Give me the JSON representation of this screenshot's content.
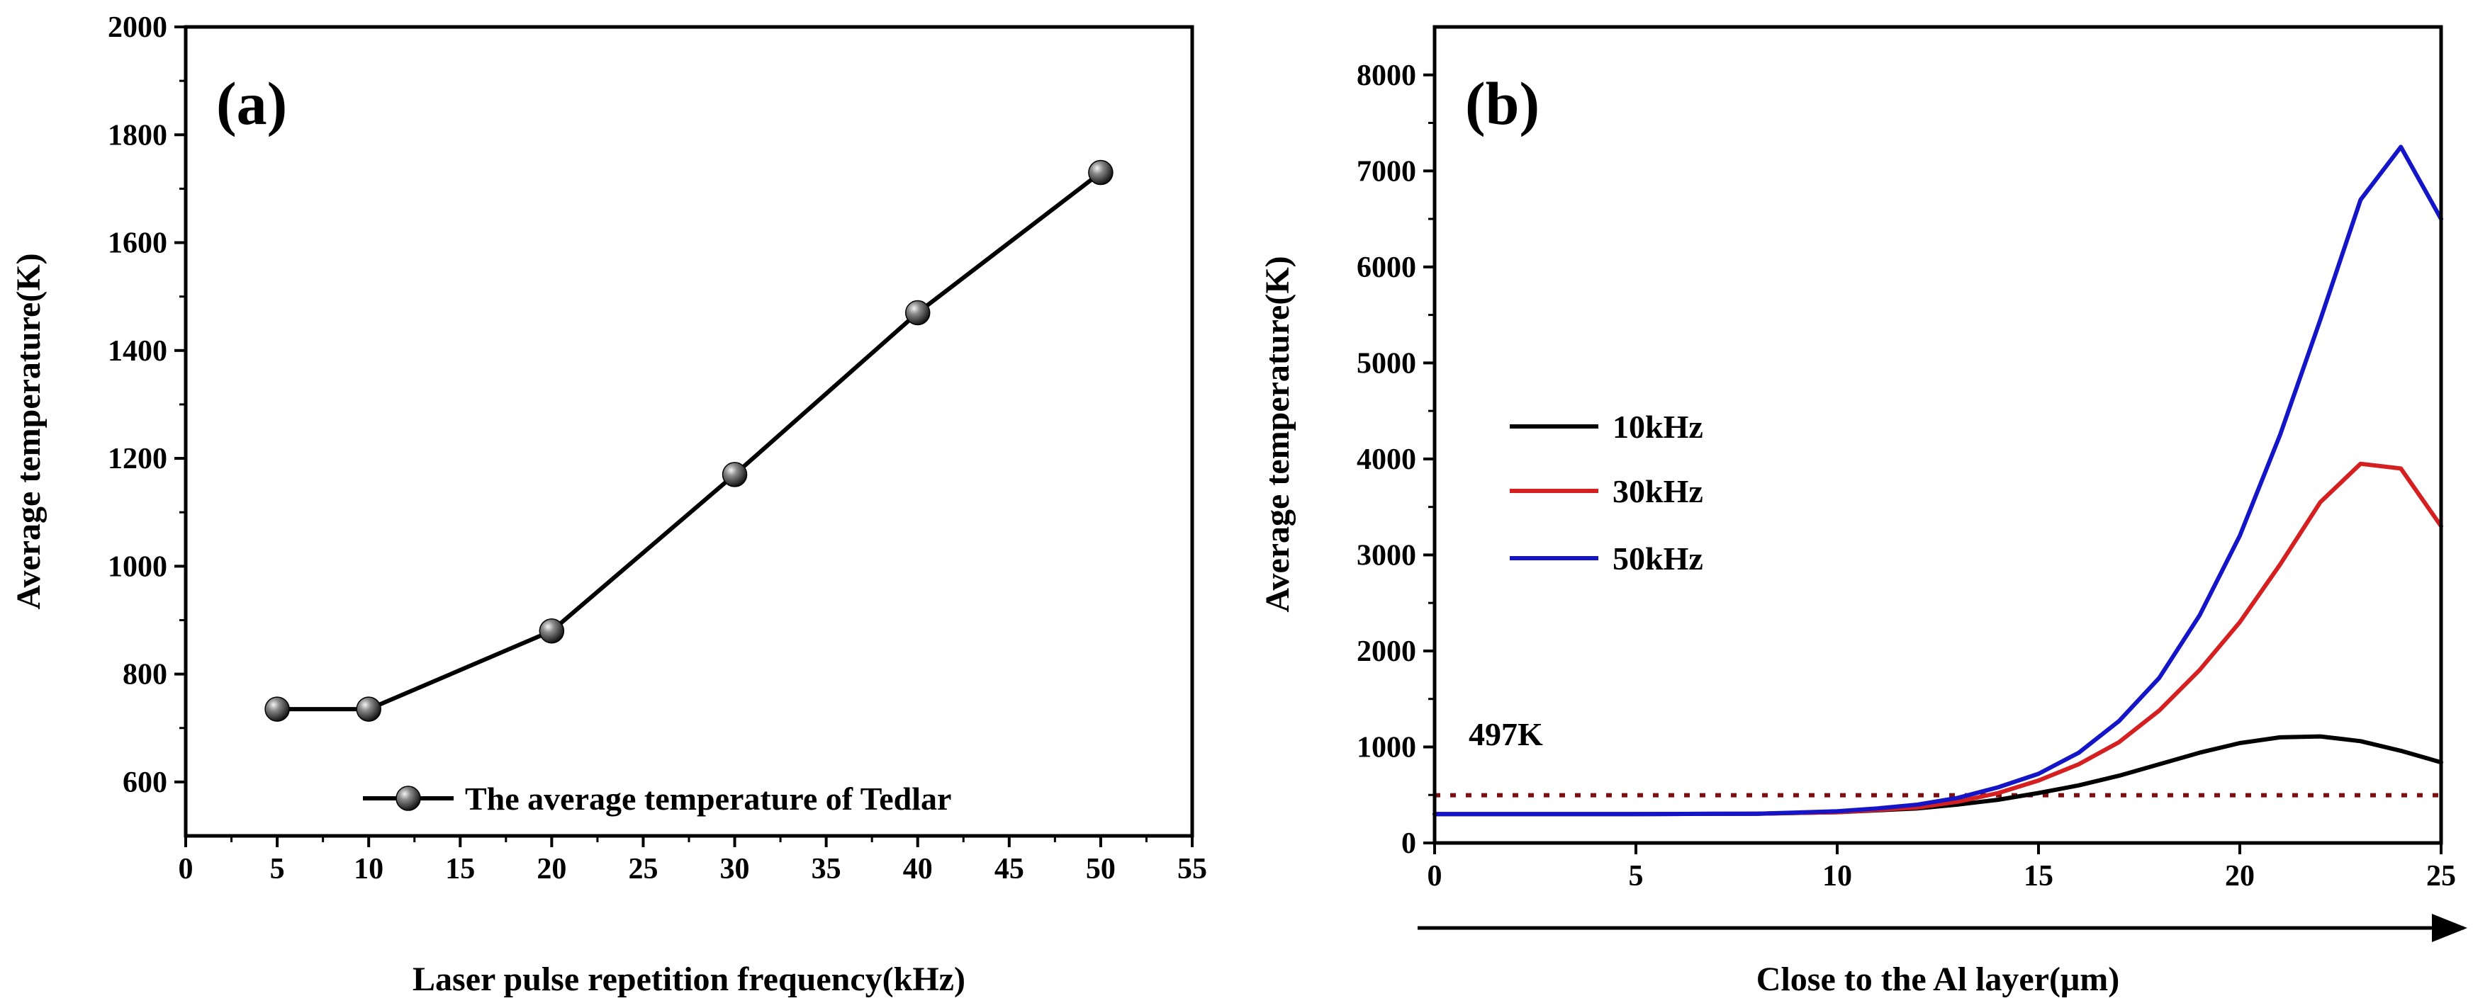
{
  "chart_data": [
    {
      "type": "line",
      "panel_label": "(a)",
      "xlabel": "Laser pulse repetition frequency(kHz)",
      "ylabel": "Average temperature(K)",
      "xlim": [
        0,
        55
      ],
      "ylim": [
        500,
        2000
      ],
      "xticks": [
        0,
        5,
        10,
        15,
        20,
        25,
        30,
        35,
        40,
        45,
        50,
        55
      ],
      "yticks": [
        600,
        800,
        1000,
        1200,
        1400,
        1600,
        1800,
        2000
      ],
      "series": [
        {
          "name": "The average temperature of Tedlar",
          "color": "#000000",
          "marker": "sphere",
          "x": [
            5,
            10,
            20,
            30,
            40,
            50
          ],
          "y": [
            735,
            735,
            880,
            1170,
            1470,
            1730
          ]
        }
      ],
      "legend_position": "bottom-right"
    },
    {
      "type": "line",
      "panel_label": "(b)",
      "xlabel": "Close to the Al layer(μm)",
      "ylabel": "Average temperature(K)",
      "xlim": [
        0,
        25
      ],
      "ylim": [
        0,
        8500
      ],
      "xticks": [
        0,
        5,
        10,
        15,
        20,
        25
      ],
      "yticks": [
        0,
        1000,
        2000,
        3000,
        4000,
        5000,
        6000,
        7000,
        8000
      ],
      "series": [
        {
          "name": "10kHz",
          "color": "#000000",
          "x": [
            0,
            5,
            8,
            10,
            12,
            13,
            14,
            15,
            16,
            17,
            18,
            19,
            20,
            21,
            22,
            23,
            24,
            25
          ],
          "y": [
            300,
            300,
            305,
            320,
            360,
            400,
            450,
            520,
            600,
            700,
            820,
            940,
            1040,
            1100,
            1110,
            1060,
            960,
            840
          ]
        },
        {
          "name": "30kHz",
          "color": "#d42020",
          "x": [
            0,
            5,
            8,
            10,
            12,
            13,
            14,
            15,
            16,
            17,
            18,
            19,
            20,
            21,
            22,
            23,
            24,
            25
          ],
          "y": [
            300,
            300,
            305,
            320,
            370,
            430,
            520,
            650,
            820,
            1050,
            1380,
            1800,
            2300,
            2900,
            3550,
            3950,
            3900,
            3300
          ]
        },
        {
          "name": "50kHz",
          "color": "#1515c8",
          "x": [
            0,
            5,
            8,
            10,
            11,
            12,
            13,
            14,
            15,
            16,
            17,
            18,
            19,
            20,
            21,
            22,
            23,
            24,
            25
          ],
          "y": [
            300,
            300,
            305,
            330,
            360,
            400,
            470,
            580,
            720,
            940,
            1270,
            1720,
            2370,
            3200,
            4250,
            5450,
            6700,
            7250,
            6500
          ]
        }
      ],
      "reference_line": {
        "value": 497,
        "label": "497K",
        "color": "#7a1010",
        "style": "dotted"
      },
      "legend_position": "middle-left"
    }
  ]
}
